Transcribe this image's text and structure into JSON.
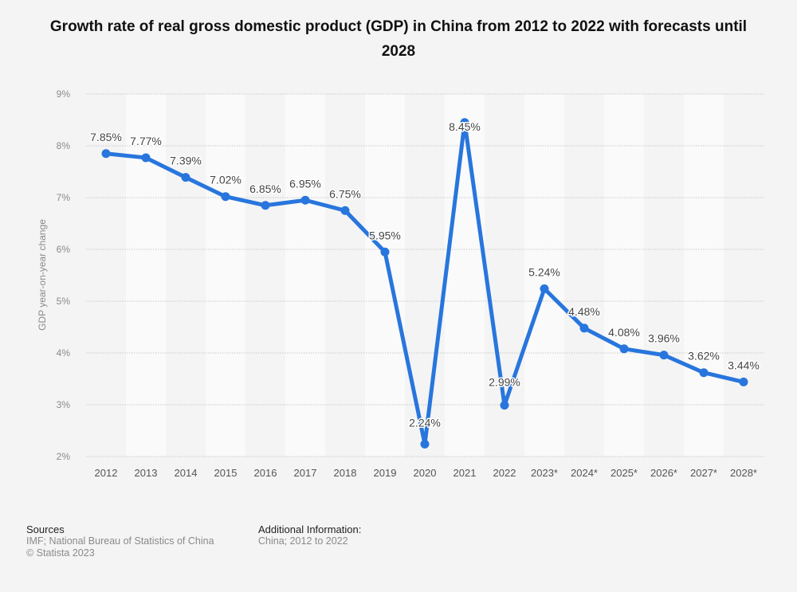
{
  "chart_data": {
    "type": "line",
    "title": "Growth rate of real gross domestic product (GDP) in China from 2012 to 2022 with forecasts until 2028",
    "xlabel": "",
    "ylabel": "GDP year-on-year change",
    "categories": [
      "2012",
      "2013",
      "2014",
      "2015",
      "2016",
      "2017",
      "2018",
      "2019",
      "2020",
      "2021",
      "2022",
      "2023*",
      "2024*",
      "2025*",
      "2026*",
      "2027*",
      "2028*"
    ],
    "series": [
      {
        "name": "GDP growth",
        "values": [
          7.85,
          7.77,
          7.39,
          7.02,
          6.85,
          6.95,
          6.75,
          5.95,
          2.24,
          8.45,
          2.99,
          5.24,
          4.48,
          4.08,
          3.96,
          3.62,
          3.44
        ],
        "labels": [
          "7.85%",
          "7.77%",
          "7.39%",
          "7.02%",
          "6.85%",
          "6.95%",
          "6.75%",
          "5.95%",
          "2.24%",
          "8.45%",
          "2.99%",
          "5.24%",
          "4.48%",
          "4.08%",
          "3.96%",
          "3.62%",
          "3.44%"
        ],
        "color": "#2876dd"
      }
    ],
    "ylim": [
      2,
      9
    ],
    "yticks": [
      2,
      3,
      4,
      5,
      6,
      7,
      8,
      9
    ],
    "ytick_labels": [
      "2%",
      "3%",
      "4%",
      "5%",
      "6%",
      "7%",
      "8%",
      "9%"
    ],
    "grid": true,
    "legend": "none"
  },
  "footer": {
    "sources_heading": "Sources",
    "sources_text": "IMF; National Bureau of Statistics of China",
    "copyright": "© Statista 2023",
    "info_heading": "Additional Information:",
    "info_text": "China; 2012 to 2022"
  }
}
